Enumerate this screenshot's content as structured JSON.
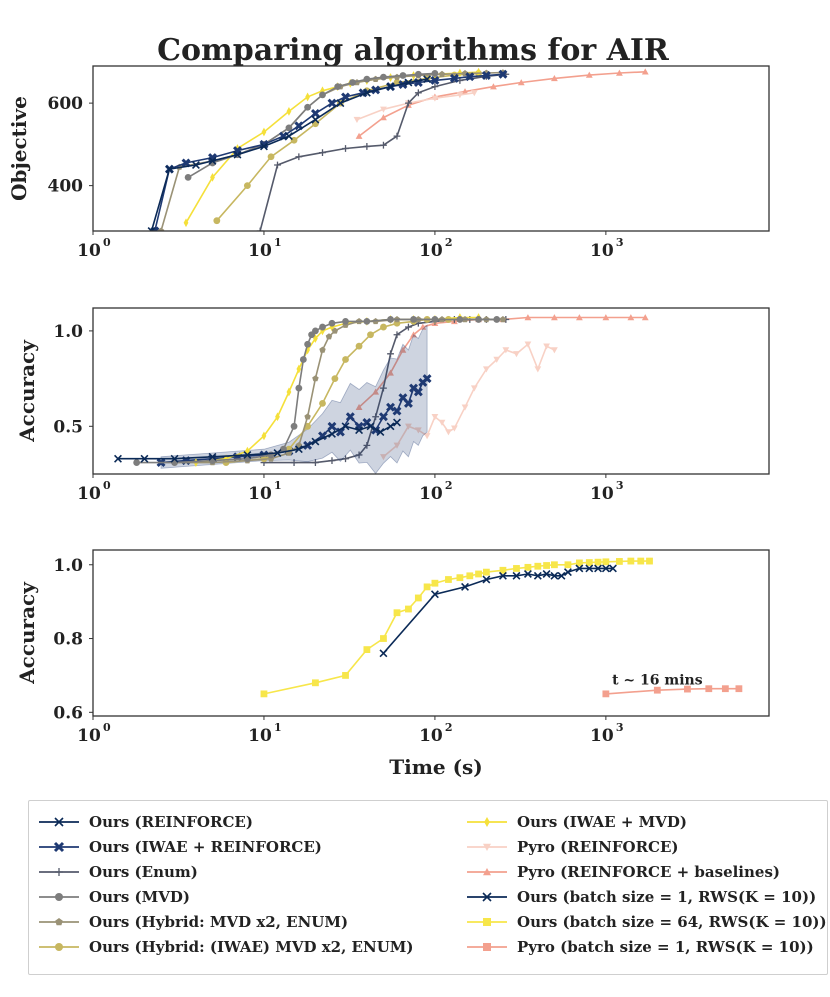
{
  "title": "Comparing algorithms for AIR",
  "colors": {
    "ours_reinforce": "#0b2a57",
    "ours_iwae_reinforce": "#1f3a73",
    "ours_enum": "#555a6b",
    "ours_mvd": "#7d7d7d",
    "ours_hybrid": "#9a9276",
    "ours_hybrid_iwae": "#c7b760",
    "ours_iwae_mvd": "#f5e03a",
    "pyro_reinforce": "#f8d1c5",
    "pyro_baselines": "#f3a08e",
    "batch1": "#0b2a57",
    "batch64": "#f7e64a",
    "pyro_batch1": "#f3a08e"
  },
  "chart_data": [
    {
      "type": "line",
      "name": "objective",
      "xscale": "log",
      "xlim": [
        1,
        9000
      ],
      "ylim": [
        290,
        690
      ],
      "ylabel": "Objective",
      "xticks": [
        1,
        10,
        100,
        1000
      ],
      "xtick_labels": [
        "10",
        "10",
        "10",
        "10"
      ],
      "xtick_exponents": [
        "0",
        "1",
        "2",
        "3"
      ],
      "yticks": [
        400,
        600
      ],
      "ytick_labels": [
        "400",
        "600"
      ],
      "series": [
        {
          "key": "pyro_baselines",
          "marker": "tri",
          "x": [
            36,
            50,
            70,
            100,
            150,
            220,
            320,
            500,
            800,
            1200,
            1700
          ],
          "y": [
            520,
            565,
            595,
            615,
            628,
            640,
            650,
            660,
            668,
            673,
            676
          ]
        },
        {
          "key": "pyro_reinforce",
          "marker": "tridown",
          "x": [
            35,
            50,
            70,
            100,
            140,
            170
          ],
          "y": [
            560,
            585,
            600,
            612,
            620,
            625
          ]
        },
        {
          "key": "ours_enum",
          "marker": "plus",
          "x": [
            9.5,
            12,
            16,
            22,
            30,
            40,
            50,
            60,
            70,
            80,
            100,
            140,
            200,
            260
          ],
          "y": [
            290,
            450,
            470,
            480,
            490,
            495,
            498,
            520,
            600,
            625,
            640,
            655,
            665,
            670
          ]
        },
        {
          "key": "ours_hybrid_iwae",
          "marker": "circle",
          "x": [
            5.3,
            8,
            11,
            15,
            20,
            28,
            40,
            60,
            90,
            130,
            180
          ],
          "y": [
            315,
            400,
            470,
            510,
            550,
            600,
            630,
            650,
            660,
            668,
            672
          ]
        },
        {
          "key": "ours_iwae_mvd",
          "marker": "diamond",
          "x": [
            3.5,
            5,
            7,
            10,
            14,
            18,
            22,
            27,
            32,
            40,
            55,
            75,
            100,
            140,
            180
          ],
          "y": [
            310,
            420,
            490,
            530,
            580,
            615,
            630,
            640,
            648,
            655,
            662,
            667,
            670,
            673,
            675
          ]
        },
        {
          "key": "ours_hybrid",
          "marker": "pentagon",
          "x": [
            2.5,
            3.2,
            5,
            7,
            10,
            14,
            18,
            22,
            28,
            35,
            45,
            60,
            80,
            110,
            150,
            200,
            250
          ],
          "y": [
            290,
            445,
            460,
            475,
            500,
            540,
            590,
            620,
            640,
            650,
            658,
            663,
            667,
            670,
            672,
            673,
            674
          ]
        },
        {
          "key": "ours_mvd",
          "marker": "circle",
          "x": [
            3.6,
            5,
            7,
            10,
            14,
            18,
            22,
            27,
            33,
            40,
            50,
            65,
            80,
            100
          ],
          "y": [
            420,
            455,
            475,
            500,
            540,
            590,
            620,
            640,
            650,
            658,
            663,
            667,
            670,
            672
          ]
        },
        {
          "key": "ours_iwae_reinforce",
          "marker": "xthick",
          "x": [
            2.3,
            2.8,
            3.5,
            5,
            7,
            10,
            13,
            16,
            20,
            25,
            30,
            38,
            45,
            55,
            65,
            80,
            100,
            130,
            160,
            200,
            250
          ],
          "y": [
            290,
            440,
            455,
            468,
            485,
            500,
            520,
            545,
            575,
            600,
            615,
            625,
            632,
            640,
            645,
            650,
            655,
            660,
            664,
            667,
            670
          ]
        },
        {
          "key": "ours_reinforce",
          "marker": "x",
          "x": [
            2.2,
            2.8,
            4,
            5,
            7,
            10,
            14,
            20,
            28,
            40,
            55,
            70,
            90
          ],
          "y": [
            290,
            440,
            450,
            460,
            475,
            495,
            520,
            560,
            600,
            625,
            640,
            650,
            658
          ]
        }
      ]
    },
    {
      "type": "line",
      "name": "accuracy",
      "xscale": "log",
      "xlim": [
        1,
        9000
      ],
      "ylim": [
        0.25,
        1.12
      ],
      "ylabel": "Accuracy",
      "xticks": [
        1,
        10,
        100,
        1000
      ],
      "xtick_labels": [
        "10",
        "10",
        "10",
        "10"
      ],
      "xtick_exponents": [
        "0",
        "1",
        "2",
        "3"
      ],
      "yticks": [
        0.5,
        1.0
      ],
      "ytick_labels": [
        "0.5",
        "1.0"
      ],
      "series": [
        {
          "key": "pyro_reinforce",
          "marker": "tridown",
          "x": [
            50,
            60,
            70,
            80,
            90,
            100,
            110,
            120,
            130,
            150,
            170,
            200,
            230,
            260,
            300,
            350,
            400,
            450,
            500
          ],
          "y": [
            0.34,
            0.4,
            0.5,
            0.48,
            0.45,
            0.55,
            0.52,
            0.47,
            0.49,
            0.6,
            0.7,
            0.8,
            0.85,
            0.9,
            0.88,
            0.93,
            0.8,
            0.92,
            0.9
          ]
        },
        {
          "key": "pyro_baselines",
          "marker": "tri",
          "x": [
            36,
            45,
            55,
            65,
            75,
            85,
            100,
            130,
            180,
            250,
            350,
            500,
            700,
            1000,
            1400,
            1700
          ],
          "y": [
            0.6,
            0.68,
            0.78,
            0.9,
            0.98,
            1.02,
            1.04,
            1.05,
            1.06,
            1.06,
            1.07,
            1.07,
            1.07,
            1.07,
            1.07,
            1.07
          ]
        },
        {
          "key": "ours_enum",
          "marker": "plus",
          "x": [
            10,
            15,
            20,
            25,
            30,
            36,
            40,
            45,
            50,
            55,
            60,
            70,
            80,
            100,
            130,
            160,
            200,
            260
          ],
          "y": [
            0.31,
            0.31,
            0.31,
            0.32,
            0.33,
            0.35,
            0.4,
            0.55,
            0.7,
            0.88,
            0.98,
            1.02,
            1.04,
            1.05,
            1.06,
            1.06,
            1.06,
            1.06
          ]
        },
        {
          "key": "ours_iwae_reinforce",
          "marker": "xthick",
          "band": true,
          "x": [
            2.5,
            3.5,
            5,
            7,
            10,
            14,
            18,
            22,
            25,
            28,
            32,
            36,
            40,
            45,
            50,
            55,
            60,
            65,
            70,
            75,
            80,
            85,
            90
          ],
          "y": [
            0.31,
            0.32,
            0.33,
            0.34,
            0.35,
            0.37,
            0.4,
            0.45,
            0.5,
            0.47,
            0.55,
            0.5,
            0.52,
            0.48,
            0.55,
            0.6,
            0.58,
            0.65,
            0.62,
            0.7,
            0.68,
            0.73,
            0.75
          ]
        },
        {
          "key": "ours_hybrid_iwae",
          "marker": "circle",
          "x": [
            6,
            10,
            14,
            18,
            22,
            26,
            30,
            36,
            42,
            50,
            60,
            75,
            90,
            120
          ],
          "y": [
            0.31,
            0.33,
            0.38,
            0.5,
            0.62,
            0.75,
            0.85,
            0.92,
            0.98,
            1.02,
            1.04,
            1.05,
            1.06,
            1.06
          ]
        },
        {
          "key": "ours_iwae_mvd",
          "marker": "diamond",
          "x": [
            4,
            6,
            8,
            10,
            12,
            14,
            16,
            18,
            20,
            22,
            25,
            30,
            40,
            55,
            75,
            100,
            140,
            180
          ],
          "y": [
            0.31,
            0.33,
            0.37,
            0.45,
            0.55,
            0.68,
            0.8,
            0.9,
            0.96,
            1.0,
            1.02,
            1.04,
            1.05,
            1.06,
            1.06,
            1.06,
            1.07,
            1.07
          ]
        },
        {
          "key": "ours_hybrid",
          "marker": "pentagon",
          "x": [
            3,
            5,
            8,
            11,
            14,
            16,
            18,
            20,
            22,
            24,
            26,
            30,
            36,
            45,
            60,
            80,
            110,
            150,
            200,
            250
          ],
          "y": [
            0.31,
            0.31,
            0.32,
            0.33,
            0.36,
            0.4,
            0.55,
            0.75,
            0.9,
            0.97,
            1.0,
            1.03,
            1.05,
            1.05,
            1.06,
            1.06,
            1.06,
            1.06,
            1.06,
            1.06
          ]
        },
        {
          "key": "ours_mvd",
          "marker": "circle",
          "x": [
            1.8,
            3,
            5,
            8,
            11,
            13,
            15,
            16,
            17,
            18,
            19,
            20,
            22,
            25,
            30,
            40,
            55,
            75,
            100,
            140,
            180,
            230
          ],
          "y": [
            0.31,
            0.31,
            0.32,
            0.33,
            0.35,
            0.38,
            0.5,
            0.7,
            0.85,
            0.93,
            0.98,
            1.0,
            1.02,
            1.04,
            1.05,
            1.05,
            1.06,
            1.06,
            1.06,
            1.06,
            1.06,
            1.06
          ]
        },
        {
          "key": "ours_reinforce",
          "marker": "x",
          "x": [
            1.4,
            2,
            3,
            5,
            8,
            12,
            16,
            20,
            25,
            30,
            36,
            42,
            48,
            55,
            60
          ],
          "y": [
            0.33,
            0.33,
            0.33,
            0.34,
            0.35,
            0.36,
            0.38,
            0.42,
            0.46,
            0.5,
            0.48,
            0.5,
            0.47,
            0.5,
            0.52
          ]
        }
      ]
    },
    {
      "type": "line",
      "name": "batch",
      "xscale": "log",
      "xlim": [
        1,
        9000
      ],
      "ylim": [
        0.59,
        1.04
      ],
      "ylabel": "Accuracy",
      "xlabel": "Time (s)",
      "xticks": [
        1,
        10,
        100,
        1000
      ],
      "xtick_labels": [
        "10",
        "10",
        "10",
        "10"
      ],
      "xtick_exponents": [
        "0",
        "1",
        "2",
        "3"
      ],
      "yticks": [
        0.6,
        0.8,
        1.0
      ],
      "ytick_labels": [
        "0.6",
        "0.8",
        "1.0"
      ],
      "annotation": {
        "text": "t ~ 16 mins",
        "x": 2000,
        "y": 0.675
      },
      "series": [
        {
          "key": "batch64",
          "marker": "square",
          "x": [
            10,
            20,
            30,
            40,
            50,
            60,
            70,
            80,
            90,
            100,
            120,
            140,
            160,
            180,
            200,
            250,
            300,
            350,
            400,
            450,
            500,
            600,
            700,
            800,
            900,
            1000,
            1200,
            1400,
            1600,
            1800
          ],
          "y": [
            0.65,
            0.68,
            0.7,
            0.77,
            0.8,
            0.87,
            0.88,
            0.91,
            0.94,
            0.95,
            0.96,
            0.965,
            0.97,
            0.975,
            0.98,
            0.985,
            0.99,
            0.993,
            0.996,
            0.998,
            1.0,
            1.0,
            1.005,
            1.006,
            1.007,
            1.008,
            1.009,
            1.01,
            1.01,
            1.01
          ]
        },
        {
          "key": "batch1",
          "marker": "x",
          "x": [
            50,
            100,
            150,
            200,
            250,
            300,
            350,
            400,
            450,
            500,
            550,
            600,
            700,
            800,
            900,
            1000,
            1100
          ],
          "y": [
            0.76,
            0.92,
            0.94,
            0.96,
            0.97,
            0.97,
            0.975,
            0.97,
            0.975,
            0.97,
            0.97,
            0.98,
            0.99,
            0.99,
            0.99,
            0.99,
            0.99
          ]
        },
        {
          "key": "pyro_batch1",
          "marker": "square",
          "x": [
            1000,
            2000,
            3000,
            4000,
            5000,
            6000
          ],
          "y": [
            0.65,
            0.66,
            0.663,
            0.664,
            0.664,
            0.664
          ]
        }
      ]
    }
  ],
  "legend": {
    "left": [
      {
        "key": "ours_reinforce",
        "marker": "x",
        "label": "Ours (REINFORCE)"
      },
      {
        "key": "ours_iwae_reinforce",
        "marker": "xthick",
        "label": "Ours (IWAE + REINFORCE)"
      },
      {
        "key": "ours_enum",
        "marker": "plus",
        "label": "Ours (Enum)"
      },
      {
        "key": "ours_mvd",
        "marker": "circle",
        "label": "Ours (MVD)"
      },
      {
        "key": "ours_hybrid",
        "marker": "pentagon",
        "label": "Ours (Hybrid: MVD x2, ENUM)"
      },
      {
        "key": "ours_hybrid_iwae",
        "marker": "circle",
        "label": "Ours (Hybrid: (IWAE) MVD x2, ENUM)"
      }
    ],
    "right": [
      {
        "key": "ours_iwae_mvd",
        "marker": "diamond",
        "label": "Ours (IWAE + MVD)"
      },
      {
        "key": "pyro_reinforce",
        "marker": "tridown",
        "label": "Pyro (REINFORCE)"
      },
      {
        "key": "pyro_baselines",
        "marker": "tri",
        "label": "Pyro (REINFORCE + baselines)"
      },
      {
        "key": "batch1",
        "marker": "x",
        "label": "Ours (batch size = 1, RWS(K = 10))"
      },
      {
        "key": "batch64",
        "marker": "square",
        "label": "Ours (batch size = 64, RWS(K = 10))"
      },
      {
        "key": "pyro_batch1",
        "marker": "square",
        "label": "Pyro (batch size = 1, RWS(K = 10))"
      }
    ]
  }
}
